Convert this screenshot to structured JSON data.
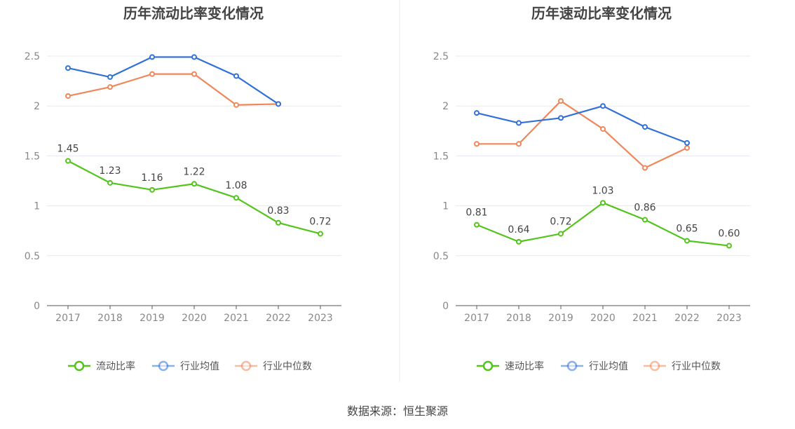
{
  "charts": [
    {
      "type": "line",
      "title": "历年流动比率变化情况",
      "categories": [
        "2017",
        "2018",
        "2019",
        "2020",
        "2021",
        "2022",
        "2023"
      ],
      "ylim": [
        0,
        2.5
      ],
      "yticks": [
        "0",
        "0.5",
        "1",
        "1.5",
        "2",
        "2.5"
      ],
      "series": [
        {
          "name": "流动比率",
          "color": "#52c41a",
          "labels": true,
          "values": [
            1.45,
            1.23,
            1.16,
            1.22,
            1.08,
            0.83,
            0.72
          ],
          "label_text": [
            "1.45",
            "1.23",
            "1.16",
            "1.22",
            "1.08",
            "0.83",
            "0.72"
          ]
        },
        {
          "name": "行业均值",
          "color": "#3070d8",
          "labels": false,
          "values": [
            2.38,
            2.29,
            2.49,
            2.49,
            2.3,
            2.02,
            null
          ]
        },
        {
          "name": "行业中位数",
          "color": "#f0875a",
          "labels": false,
          "values": [
            2.1,
            2.19,
            2.32,
            2.32,
            2.01,
            2.02,
            null
          ]
        }
      ]
    },
    {
      "type": "line",
      "title": "历年速动比率变化情况",
      "categories": [
        "2017",
        "2018",
        "2019",
        "2020",
        "2021",
        "2022",
        "2023"
      ],
      "ylim": [
        0,
        2.5
      ],
      "yticks": [
        "0",
        "0.5",
        "1",
        "1.5",
        "2",
        "2.5"
      ],
      "series": [
        {
          "name": "速动比率",
          "color": "#52c41a",
          "labels": true,
          "values": [
            0.81,
            0.64,
            0.72,
            1.03,
            0.86,
            0.65,
            0.6
          ],
          "label_text": [
            "0.81",
            "0.64",
            "0.72",
            "1.03",
            "0.86",
            "0.65",
            "0.60"
          ]
        },
        {
          "name": "行业均值",
          "color": "#3070d8",
          "labels": false,
          "values": [
            1.93,
            1.83,
            1.88,
            2.0,
            1.79,
            1.63,
            null
          ]
        },
        {
          "name": "行业中位数",
          "color": "#f0875a",
          "labels": false,
          "values": [
            1.62,
            1.62,
            2.05,
            1.77,
            1.38,
            1.58,
            null
          ]
        }
      ]
    }
  ],
  "chart_data": [
    {
      "type": "line",
      "title": "历年流动比率变化情况",
      "x": [
        "2017",
        "2018",
        "2019",
        "2020",
        "2021",
        "2022",
        "2023"
      ],
      "ylim": [
        0,
        2.5
      ],
      "series": [
        {
          "name": "流动比率",
          "values": [
            1.45,
            1.23,
            1.16,
            1.22,
            1.08,
            0.83,
            0.72
          ]
        },
        {
          "name": "行业均值",
          "values": [
            2.38,
            2.29,
            2.49,
            2.49,
            2.3,
            2.02,
            null
          ]
        },
        {
          "name": "行业中位数",
          "values": [
            2.1,
            2.19,
            2.32,
            2.32,
            2.01,
            2.02,
            null
          ]
        }
      ],
      "legend": "bottom-center"
    },
    {
      "type": "line",
      "title": "历年速动比率变化情况",
      "x": [
        "2017",
        "2018",
        "2019",
        "2020",
        "2021",
        "2022",
        "2023"
      ],
      "ylim": [
        0,
        2.5
      ],
      "series": [
        {
          "name": "速动比率",
          "values": [
            0.81,
            0.64,
            0.72,
            1.03,
            0.86,
            0.65,
            0.6
          ]
        },
        {
          "name": "行业均值",
          "values": [
            1.93,
            1.83,
            1.88,
            2.0,
            1.79,
            1.63,
            null
          ]
        },
        {
          "name": "行业中位数",
          "values": [
            1.62,
            1.62,
            2.05,
            1.77,
            1.38,
            1.58,
            null
          ]
        }
      ],
      "legend": "bottom-center"
    }
  ],
  "source": "数据来源：恒生聚源",
  "colors": {
    "grid": "#e6e9f0",
    "axis": "#555555",
    "divider": "#eeeeee"
  }
}
